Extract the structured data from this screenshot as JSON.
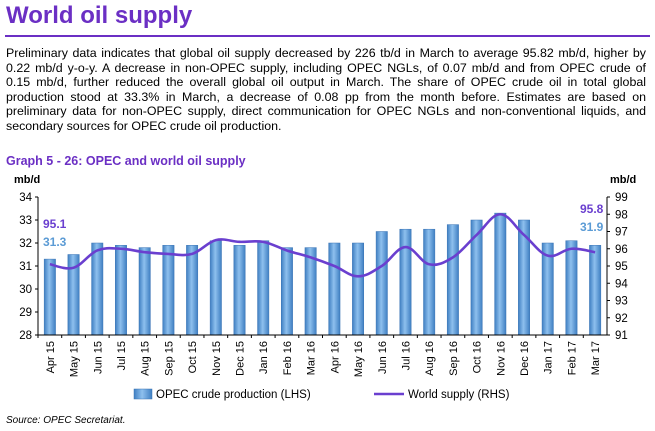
{
  "page": {
    "title": "World oil supply",
    "paragraph": "Preliminary data indicates that global oil supply decreased by 226 tb/d in March to average 95.82 mb/d, higher by 0.22 mb/d y-o-y. A decrease in non-OPEC supply, including OPEC NGLs, of 0.07 mb/d and from OPEC crude of 0.15 mb/d, further reduced the overall global oil output in March. The share of OPEC crude oil in total global production stood at 33.3% in March, a decrease of 0.08 pp from the month before. Estimates are based on preliminary data for non-OPEC supply, direct communication for OPEC NGLs and non-conventional liquids, and secondary sources for OPEC crude oil production.",
    "graph_title": "Graph 5 - 26: OPEC and world oil supply",
    "source": "Source: OPEC Secretariat."
  },
  "colors": {
    "title": "#6b2fc4",
    "bar": "#5b9bd5",
    "line": "#6a3fcf",
    "label_blue": "#5b9bd5",
    "label_purple": "#6a3fcf"
  },
  "chart_data": {
    "type": "bar",
    "title": "Graph 5 - 26: OPEC and world oil supply",
    "categories": [
      "Apr 15",
      "May 15",
      "Jun 15",
      "Jul 15",
      "Aug 15",
      "Sep 15",
      "Oct 15",
      "Nov 15",
      "Dec 15",
      "Jan 16",
      "Feb 16",
      "Mar 16",
      "Apr 16",
      "May 16",
      "Jun 16",
      "Jul 16",
      "Aug 16",
      "Sep 16",
      "Oct 16",
      "Nov 16",
      "Dec 16",
      "Jan 17",
      "Feb 17",
      "Mar 17"
    ],
    "left_axis": {
      "unit_label": "mb/d",
      "min": 28,
      "max": 34,
      "ticks": [
        28,
        29,
        30,
        31,
        32,
        33,
        34
      ]
    },
    "right_axis": {
      "unit_label": "mb/d",
      "min": 91,
      "max": 99,
      "ticks": [
        91,
        92,
        93,
        94,
        95,
        96,
        97,
        98,
        99
      ]
    },
    "series": [
      {
        "name": "OPEC crude production (LHS)",
        "type": "bar",
        "axis": "left",
        "values": [
          31.3,
          31.5,
          32.0,
          31.9,
          31.8,
          31.9,
          31.9,
          32.1,
          31.9,
          32.1,
          31.8,
          31.8,
          32.0,
          32.0,
          32.5,
          32.6,
          32.6,
          32.8,
          33.0,
          33.3,
          33.0,
          32.0,
          32.1,
          31.9
        ]
      },
      {
        "name": "World supply (RHS)",
        "type": "line",
        "axis": "right",
        "values": [
          95.1,
          94.9,
          95.9,
          96.0,
          95.8,
          95.7,
          95.7,
          96.5,
          96.4,
          96.4,
          95.9,
          95.5,
          95.0,
          94.4,
          95.0,
          96.1,
          95.1,
          95.5,
          96.8,
          98.0,
          96.8,
          95.6,
          96.0,
          95.8
        ]
      }
    ],
    "annotations": [
      {
        "text": "95.1",
        "series": "World supply (RHS)",
        "category": "Apr 15"
      },
      {
        "text": "31.3",
        "series": "OPEC crude production (LHS)",
        "category": "Apr 15"
      },
      {
        "text": "95.8",
        "series": "World supply (RHS)",
        "category": "Mar 17"
      },
      {
        "text": "31.9",
        "series": "OPEC crude production (LHS)",
        "category": "Mar 17"
      }
    ],
    "grid": false,
    "legend": "bottom"
  }
}
